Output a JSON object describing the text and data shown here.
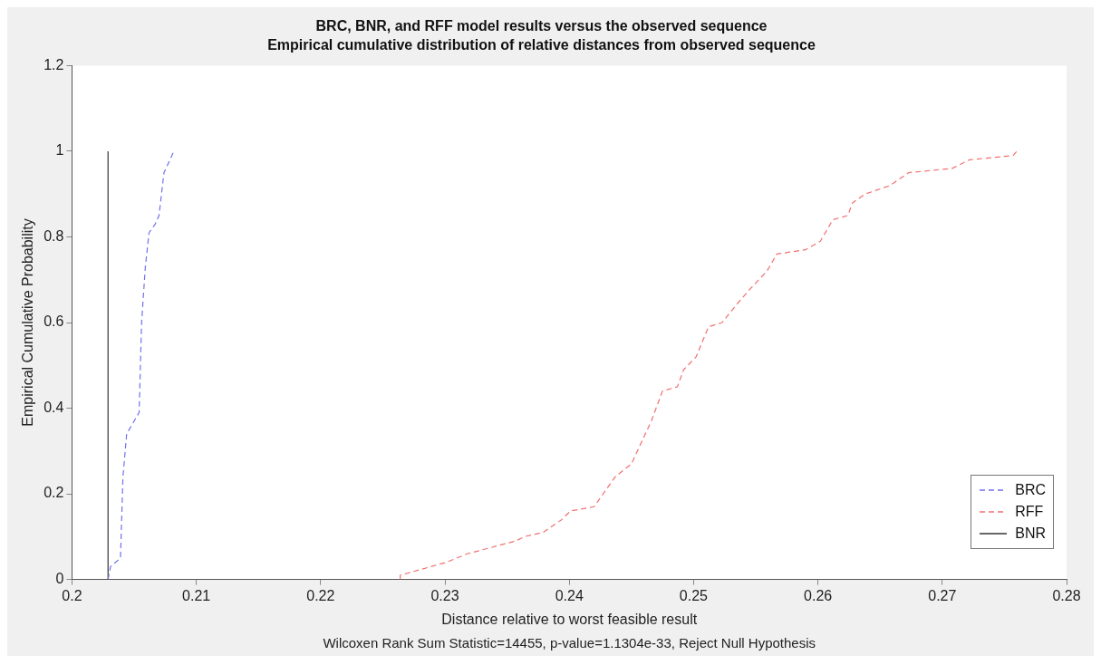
{
  "chart_data": {
    "type": "line",
    "title": "BRC, BNR, and RFF model results versus the observed sequence",
    "subtitle": "Empirical cumulative distribution of relative distances from observed sequence",
    "xlabel": "Distance relative to worst feasible result",
    "ylabel": "Empirical Cumulative Probability",
    "annotations": [
      "Wilcoxen Rank Sum Statistic=14455, p-value=1.1304e-33, Reject Null Hypothesis"
    ],
    "xlim": [
      0.2,
      0.28
    ],
    "xticks": [
      0.2,
      0.21,
      0.22,
      0.23,
      0.24,
      0.25,
      0.26,
      0.27,
      0.28
    ],
    "ylim": [
      0,
      1.2
    ],
    "yticks": [
      0,
      0.2,
      0.4,
      0.6,
      0.8,
      1,
      1.2
    ],
    "grid": false,
    "legend": "bottom right",
    "marker": "none",
    "series": [
      {
        "name": "BRC",
        "color": "#7070f0",
        "line_style": "dashed",
        "x": [
          0.2029,
          0.2031,
          0.2039,
          0.2041,
          0.2044,
          0.2054,
          0.2056,
          0.2059,
          0.2062,
          0.2067,
          0.207,
          0.2074,
          0.2082
        ],
        "values": [
          0,
          0.03,
          0.05,
          0.24,
          0.34,
          0.39,
          0.6,
          0.73,
          0.81,
          0.83,
          0.85,
          0.95,
          1
        ]
      },
      {
        "name": "RFF",
        "color": "#f07070",
        "line_style": "dashed",
        "x": [
          0.2264,
          0.2264,
          0.2301,
          0.2318,
          0.2357,
          0.2364,
          0.2379,
          0.2394,
          0.2401,
          0.242,
          0.2437,
          0.245,
          0.2466,
          0.2475,
          0.2487,
          0.2492,
          0.2502,
          0.2512,
          0.2523,
          0.2534,
          0.2546,
          0.2559,
          0.2567,
          0.259,
          0.2602,
          0.2612,
          0.2624,
          0.2628,
          0.2638,
          0.2658,
          0.2673,
          0.2708,
          0.2722,
          0.2757,
          0.276
        ],
        "values": [
          0,
          0.01,
          0.04,
          0.06,
          0.09,
          0.1,
          0.11,
          0.14,
          0.16,
          0.17,
          0.24,
          0.27,
          0.37,
          0.44,
          0.45,
          0.49,
          0.52,
          0.59,
          0.6,
          0.64,
          0.68,
          0.72,
          0.76,
          0.77,
          0.79,
          0.84,
          0.85,
          0.88,
          0.9,
          0.92,
          0.95,
          0.96,
          0.98,
          0.99,
          1
        ]
      },
      {
        "name": "BNR",
        "color": "#333333",
        "line_style": "solid",
        "x": [
          0.2029,
          0.2029
        ],
        "values": [
          0,
          1
        ]
      }
    ]
  }
}
